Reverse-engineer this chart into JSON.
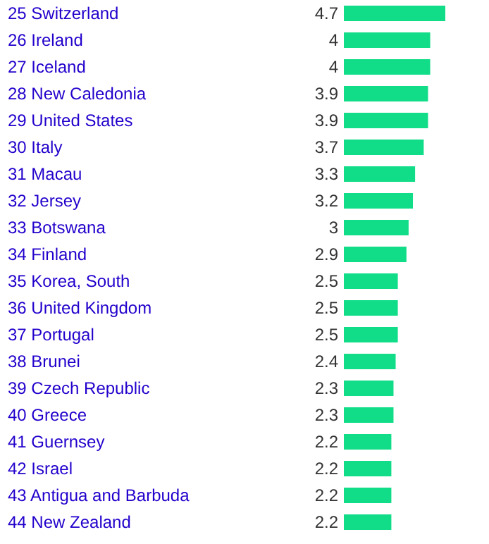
{
  "chart_data": {
    "type": "bar",
    "orientation": "horizontal",
    "data_labels": true,
    "color": "#11dd88",
    "categories": [
      "25 Switzerland",
      "26 Ireland",
      "27 Iceland",
      "28 New Caledonia",
      "29 United States",
      "30 Italy",
      "31 Macau",
      "32 Jersey",
      "33 Botswana",
      "34 Finland",
      "35 Korea, South",
      "36 United Kingdom",
      "37 Portugal",
      "38 Brunei",
      "39 Czech Republic",
      "40 Greece",
      "41 Guernsey",
      "42 Israel",
      "43 Antigua and Barbuda",
      "44 New Zealand"
    ],
    "values": [
      4.7,
      4,
      4,
      3.9,
      3.9,
      3.7,
      3.3,
      3.2,
      3,
      2.9,
      2.5,
      2.5,
      2.5,
      2.4,
      2.3,
      2.3,
      2.2,
      2.2,
      2.2,
      2.2
    ]
  }
}
